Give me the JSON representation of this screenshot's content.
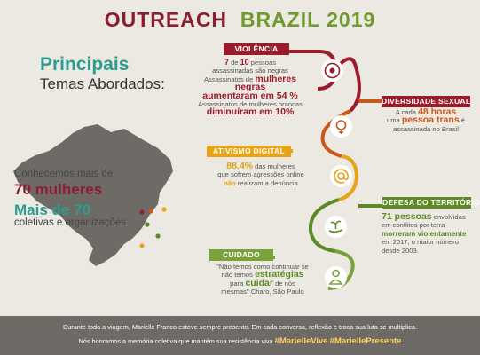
{
  "title": {
    "part1": "OUTREACH",
    "part2": "BRAZIL 2019"
  },
  "intro": {
    "heading": "Principais",
    "subheading": "Temas Abordados:"
  },
  "stats": {
    "line1": "Conhecemos mais de",
    "number1": "70 mulheres",
    "number2": "Mais de 70",
    "line2": "coletivas e organizações"
  },
  "sections": {
    "violencia": {
      "label": "VIOLÊNCIA",
      "s1a": "7",
      "s1b": " de ",
      "s1c": "10",
      "s1d": " pessoas",
      "s2": "assassinadas são negras",
      "s3a": "Assassinatos de ",
      "s3b": "mulheres negras",
      "s4": "aumentaram em 54 %",
      "s5": "Assassinatos de mulheres brancas",
      "s6": "diminuíram em 10%"
    },
    "diversidade": {
      "label": "DIVERSIDADE SEXUAL",
      "s1a": "A cada ",
      "s1b": "48 horas",
      "s2a": "uma ",
      "s2b": "pessoa trans",
      "s2c": " é",
      "s3": "assassinada no Brasil"
    },
    "ativismo": {
      "label": "ATIVISMO DIGITAL",
      "s1a": "88.4%",
      "s1b": " das mulheres",
      "s2": "que sofrem agressões online",
      "s3a": "não",
      "s3b": " realizam a denúncia"
    },
    "territorio": {
      "label": "DEFESA DO TERRITÓRIO",
      "s1a": "71 pessoas",
      "s1b": " envolvidas",
      "s2": "em conflitos por terra",
      "s3": "morreram violentamente",
      "s4": "em 2017, o maior número",
      "s5": "desde 2003."
    },
    "cuidado": {
      "label": "CUIDADO",
      "s1": "\"Não temos como continuar se",
      "s2a": "não temos ",
      "s2b": "estratégias",
      "s3a": "para ",
      "s3b": "cuidar",
      "s3c": " de nós",
      "s4": "mesmas\" Charo, São Paulo"
    }
  },
  "footer": {
    "line1": "Durante toda a viagem, Marielle Franco esteve sempre presente. Em cada conversa, reflexão e troca sua luta se multiplica.",
    "line2": "Nós honramos a memória coletiva que mantém sua resistência viva",
    "tag1": "#MarielleVive",
    "tag2": "#MariellePresente"
  },
  "colors": {
    "red": "#9c1b2b",
    "orange": "#c9571a",
    "yellow": "#e8a317",
    "green": "#5d8a25",
    "teal": "#2a9d8f",
    "map": "#6e6b67"
  },
  "icons": [
    "target-icon",
    "gender-icon",
    "at-sign-icon",
    "planting-hand-icon",
    "person-icon"
  ]
}
